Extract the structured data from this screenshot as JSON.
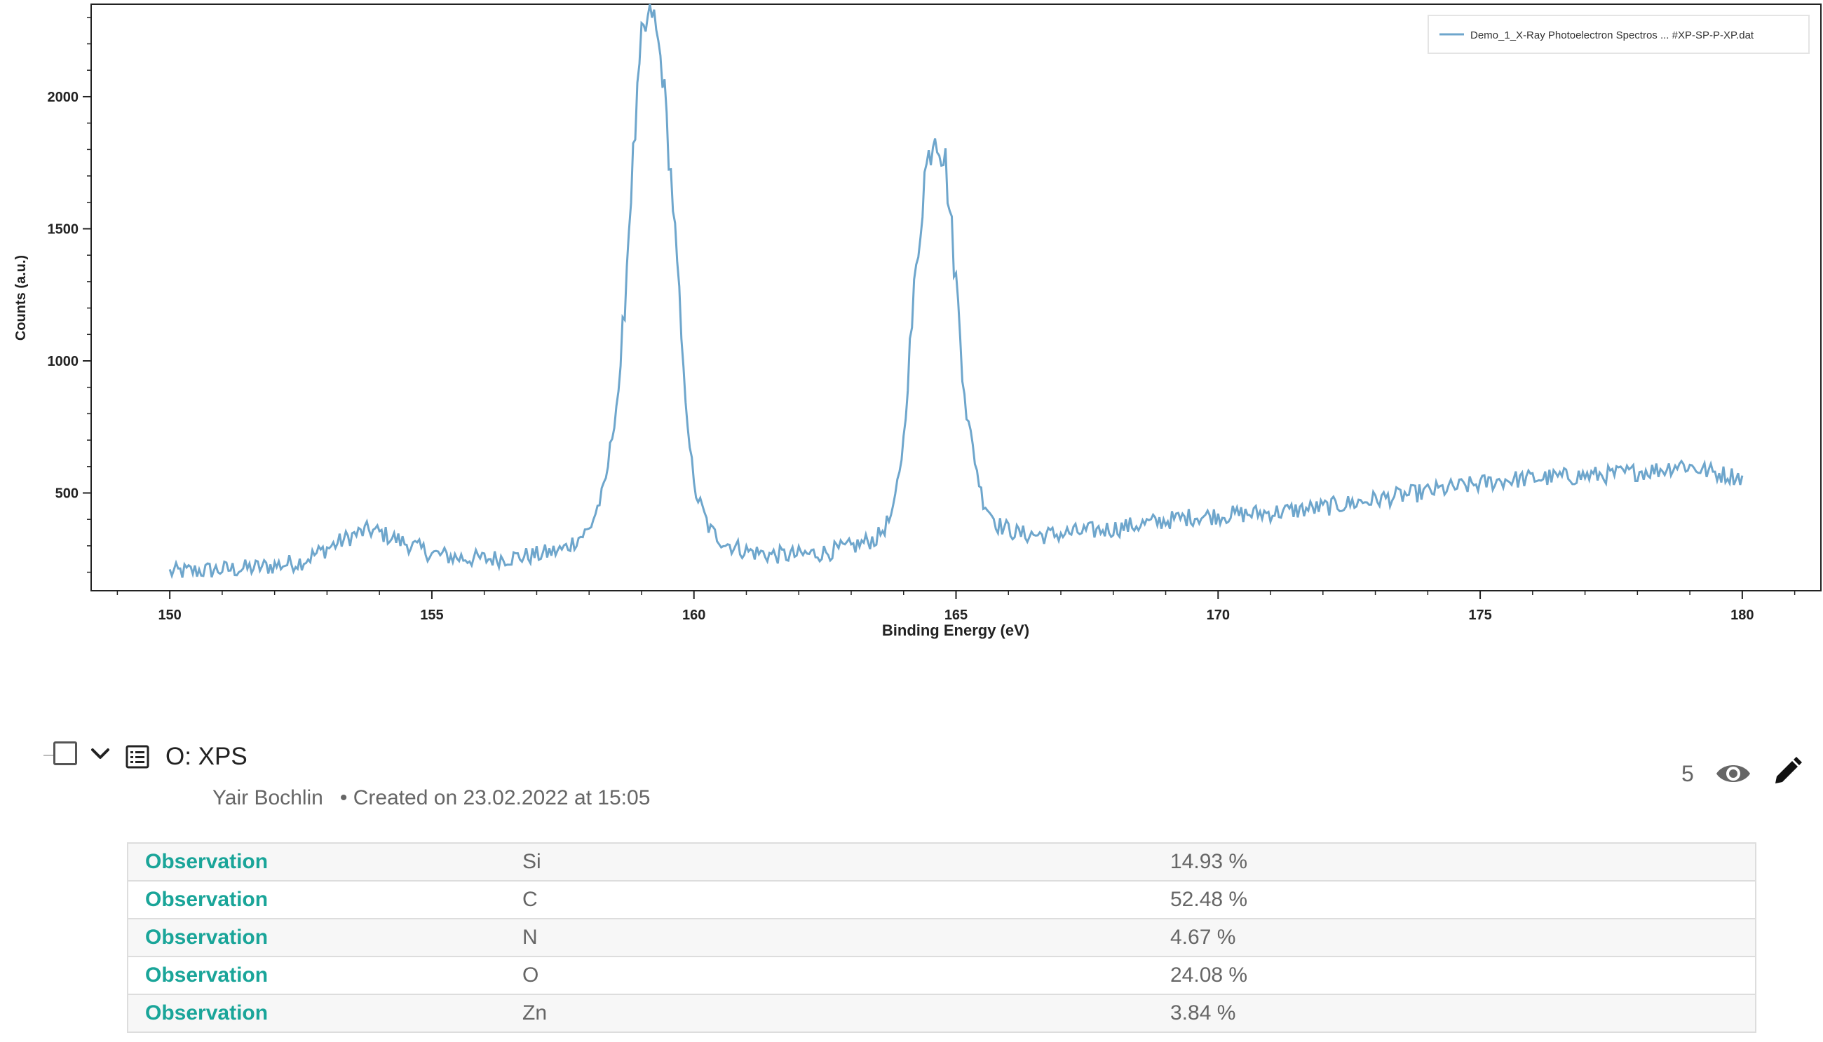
{
  "chart_data": {
    "type": "line",
    "title": "",
    "xlabel": "Binding Energy (eV)",
    "ylabel": "Counts (a.u.)",
    "xlim": [
      148.5,
      181.5
    ],
    "ylim": [
      130,
      2350
    ],
    "x_ticks": [
      150,
      155,
      160,
      165,
      170,
      175,
      180
    ],
    "y_ticks": [
      500,
      1000,
      1500,
      2000
    ],
    "grid": false,
    "legend_position": "top-right",
    "legend": [
      "Demo_1_X-Ray Photoelectron Spectros ... #XP-SP-P-XP.dat"
    ],
    "series": [
      {
        "name": "Demo_1_X-Ray Photoelectron Spectros ... #XP-SP-P-XP.dat",
        "color": "#6ea6cc",
        "x": [
          150,
          150.5,
          151,
          151.5,
          152,
          152.5,
          153,
          153.5,
          153.8,
          154,
          154.5,
          155,
          155.5,
          156,
          156.5,
          157,
          157.5,
          158,
          158.3,
          158.6,
          158.8,
          159,
          159.2,
          159.4,
          159.6,
          159.8,
          160,
          160.3,
          160.6,
          161,
          161.5,
          162,
          162.5,
          163,
          163.5,
          163.8,
          164,
          164.2,
          164.4,
          164.6,
          164.8,
          165,
          165.2,
          165.5,
          165.8,
          166.2,
          166.7,
          167,
          167.5,
          168,
          168.5,
          169,
          169.5,
          170,
          170.5,
          171,
          171.5,
          172,
          172.5,
          173,
          173.5,
          174,
          174.5,
          175,
          175.5,
          176,
          176.5,
          177,
          177.5,
          178,
          178.5,
          178.8,
          179,
          179.5,
          180
        ],
        "y": [
          200,
          205,
          210,
          215,
          225,
          240,
          290,
          340,
          360,
          350,
          310,
          270,
          255,
          250,
          255,
          265,
          285,
          360,
          520,
          950,
          1650,
          2200,
          2330,
          2100,
          1600,
          950,
          520,
          360,
          310,
          280,
          265,
          265,
          275,
          295,
          330,
          420,
          700,
          1250,
          1700,
          1880,
          1750,
          1300,
          800,
          480,
          380,
          345,
          340,
          345,
          355,
          365,
          380,
          395,
          410,
          415,
          420,
          425,
          435,
          445,
          460,
          475,
          490,
          505,
          520,
          535,
          550,
          555,
          560,
          565,
          570,
          580,
          590,
          610,
          600,
          575,
          560
        ]
      }
    ]
  },
  "entry": {
    "title": "O: XPS",
    "author": "Yair Bochlin",
    "created": "• Created on 23.02.2022 at 15:05",
    "view_count": "5"
  },
  "observations": [
    {
      "label": "Observation",
      "element": "Si",
      "value": "14.93 %"
    },
    {
      "label": "Observation",
      "element": "C",
      "value": "52.48 %"
    },
    {
      "label": "Observation",
      "element": "N",
      "value": "4.67 %"
    },
    {
      "label": "Observation",
      "element": "O",
      "value": "24.08 %"
    },
    {
      "label": "Observation",
      "element": "Zn",
      "value": "3.84 %"
    }
  ],
  "icons": {
    "checkbox": "checkbox-icon",
    "expand": "chevron-down-icon",
    "type": "list-icon",
    "views": "eye-icon",
    "edit": "pencil-icon"
  }
}
